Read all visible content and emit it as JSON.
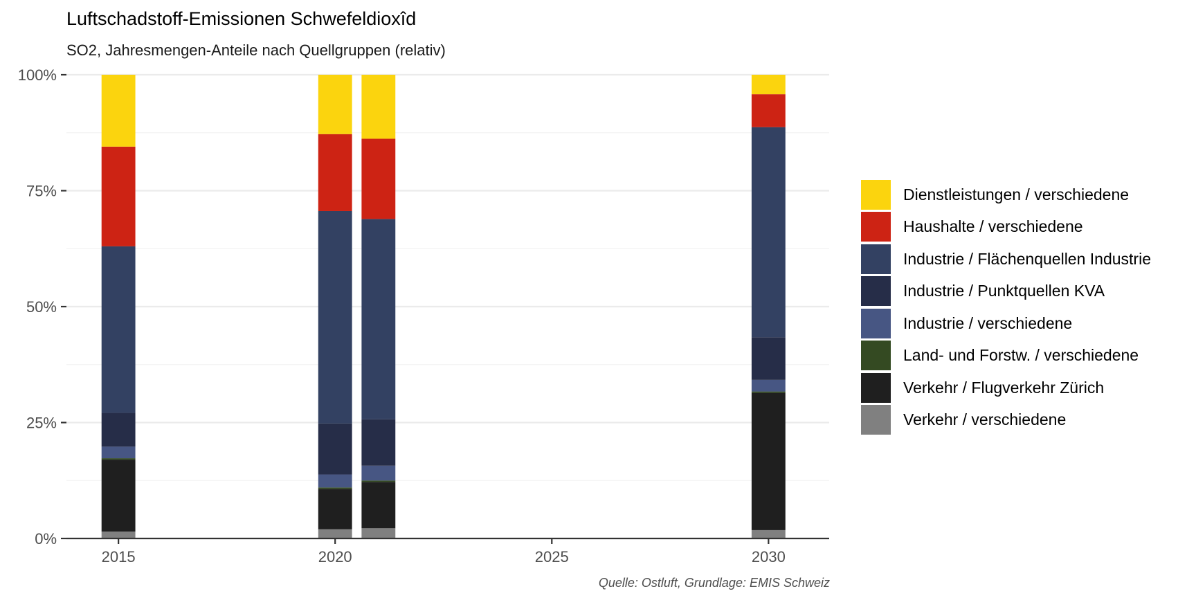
{
  "title": "Luftschadstoff-Emissionen Schwefeldioxîd",
  "subtitle": "SO2, Jahresmengen-Anteile nach Quellgruppen (relativ)",
  "caption": "Quelle: Ostluft, Grundlage: EMIS Schweiz",
  "chart_data": {
    "type": "bar",
    "stacked": true,
    "x": [
      2015,
      2020,
      2021,
      2030
    ],
    "x_ticks": [
      2015,
      2020,
      2025,
      2030
    ],
    "xlim": [
      2013.8,
      2031.4
    ],
    "ylim": [
      0,
      1
    ],
    "y_ticks": [
      0,
      0.25,
      0.5,
      0.75,
      1
    ],
    "y_tick_labels": [
      "0%",
      "25%",
      "50%",
      "75%",
      "100%"
    ],
    "grid": true,
    "legend_position": "right",
    "series": [
      {
        "name": "Verkehr / verschiedene",
        "color": "#808080",
        "values": [
          0.015,
          0.02,
          0.022,
          0.018
        ]
      },
      {
        "name": "Verkehr / Flugverkehr Zürich",
        "color": "#1f1f1f",
        "values": [
          0.155,
          0.087,
          0.1,
          0.296
        ]
      },
      {
        "name": "Land- und Forstw. / verschiedene",
        "color": "#344a22",
        "values": [
          0.003,
          0.003,
          0.003,
          0.003
        ]
      },
      {
        "name": "Industrie / verschiedene",
        "color": "#475683",
        "values": [
          0.025,
          0.028,
          0.032,
          0.025
        ]
      },
      {
        "name": "Industrie / Punktquellen KVA",
        "color": "#262d48",
        "values": [
          0.073,
          0.11,
          0.1,
          0.092
        ]
      },
      {
        "name": "Industrie / Flächenquellen Industrie",
        "color": "#334162",
        "values": [
          0.359,
          0.458,
          0.432,
          0.453
        ]
      },
      {
        "name": "Haushalte / verschiedene",
        "color": "#cd2314",
        "values": [
          0.215,
          0.166,
          0.173,
          0.071
        ]
      },
      {
        "name": "Dienstleistungen / verschiedene",
        "color": "#fbd40e",
        "values": [
          0.155,
          0.128,
          0.138,
          0.042
        ]
      }
    ]
  }
}
